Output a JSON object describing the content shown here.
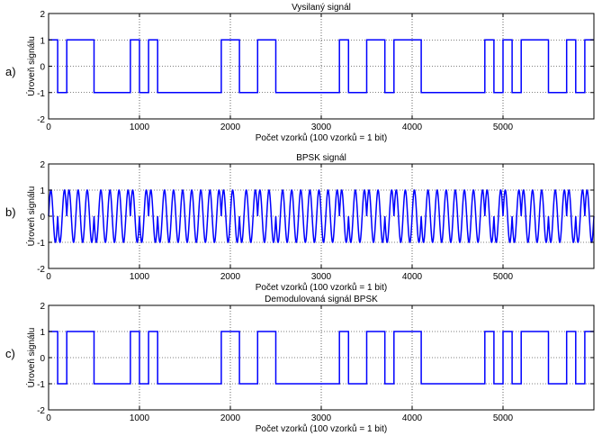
{
  "chart_data": [
    {
      "type": "line",
      "letter": "a)",
      "title": "Vysilaný signál",
      "xlabel": "Počet vzorků (100 vzorků = 1 bit)",
      "ylabel": "Úroveň signálu",
      "xlim": [
        0,
        6000
      ],
      "ylim": [
        -2,
        2
      ],
      "xticks": [
        "0",
        "1000",
        "2000",
        "3000",
        "4000",
        "5000"
      ],
      "yticks": [
        "-2",
        "-1",
        "0",
        "1",
        "2"
      ],
      "grid": true,
      "color": "#0000ff",
      "bits_per_100_samples": [
        1,
        -1,
        1,
        1,
        1,
        -1,
        -1,
        -1,
        -1,
        1,
        -1,
        1,
        -1,
        -1,
        -1,
        -1,
        -1,
        -1,
        -1,
        1,
        1,
        -1,
        -1,
        1,
        1,
        -1,
        -1,
        -1,
        -1,
        -1,
        -1,
        -1,
        1,
        -1,
        -1,
        1,
        1,
        -1,
        1,
        1,
        1,
        -1,
        -1,
        -1,
        -1,
        -1,
        -1,
        -1,
        1,
        -1,
        1,
        -1,
        1,
        1,
        1,
        -1,
        -1,
        1,
        -1,
        1
      ]
    },
    {
      "type": "line",
      "letter": "b)",
      "title": "BPSK signál",
      "xlabel": "Počet vzorků (100 vzorků = 1 bit)",
      "ylabel": "Úroveň signálu",
      "xlim": [
        0,
        6000
      ],
      "ylim": [
        -2,
        2
      ],
      "xticks": [
        "0",
        "1000",
        "2000",
        "3000",
        "4000",
        "5000"
      ],
      "yticks": [
        "-2",
        "-1",
        "0",
        "1",
        "2"
      ],
      "grid": true,
      "color": "#0000ff",
      "carrier_cycles_per_bit": 1,
      "amplitude": 1
    },
    {
      "type": "line",
      "letter": "c)",
      "title": "Demodulovaná signál BPSK",
      "xlabel": "Počet vzorků (100 vzorků = 1 bit)",
      "ylabel": "Úroveň signálu",
      "xlim": [
        0,
        6000
      ],
      "ylim": [
        -2,
        2
      ],
      "xticks": [
        "0",
        "1000",
        "2000",
        "3000",
        "4000",
        "5000"
      ],
      "yticks": [
        "-2",
        "-1",
        "0",
        "1",
        "2"
      ],
      "grid": true,
      "color": "#0000ff",
      "bits_per_100_samples": [
        1,
        -1,
        1,
        1,
        1,
        -1,
        -1,
        -1,
        -1,
        1,
        -1,
        1,
        -1,
        -1,
        -1,
        -1,
        -1,
        -1,
        -1,
        1,
        1,
        -1,
        -1,
        1,
        1,
        -1,
        -1,
        -1,
        -1,
        -1,
        -1,
        -1,
        1,
        -1,
        -1,
        1,
        1,
        -1,
        1,
        1,
        1,
        -1,
        -1,
        -1,
        -1,
        -1,
        -1,
        -1,
        1,
        -1,
        1,
        -1,
        1,
        1,
        1,
        -1,
        -1,
        1,
        -1,
        1
      ]
    }
  ]
}
